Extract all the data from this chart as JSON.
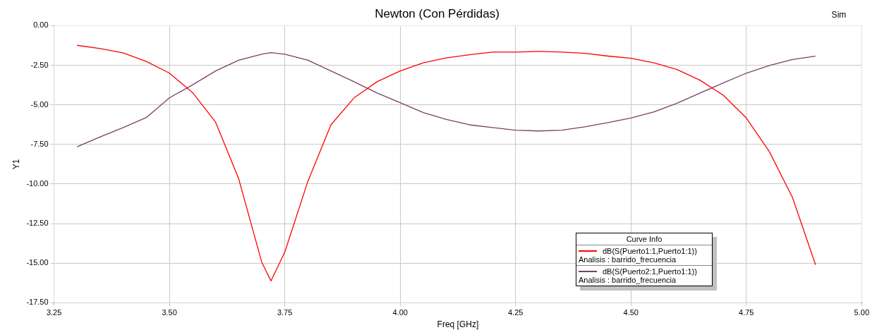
{
  "chart_data": {
    "type": "line",
    "title": "Newton (Con Pérdidas)",
    "xlabel": "Freq [GHz]",
    "ylabel": "Y1",
    "legend_title": "Curve Info",
    "annotations": [
      "Sim"
    ],
    "x": [
      3.3,
      3.35,
      3.4,
      3.45,
      3.5,
      3.55,
      3.6,
      3.65,
      3.7,
      3.72,
      3.75,
      3.8,
      3.85,
      3.9,
      3.95,
      4.0,
      4.05,
      4.1,
      4.15,
      4.2,
      4.25,
      4.3,
      4.35,
      4.4,
      4.45,
      4.5,
      4.55,
      4.6,
      4.65,
      4.7,
      4.75,
      4.8,
      4.85,
      4.9
    ],
    "series": [
      {
        "name": "dB(S(Puerto1:1,Puerto1:1))\nAnalisis : barrido_frecuencia",
        "color": "#ff0000",
        "values": [
          -1.24,
          -1.45,
          -1.72,
          -2.26,
          -3.0,
          -4.22,
          -6.09,
          -9.66,
          -14.93,
          -16.12,
          -14.3,
          -9.83,
          -6.26,
          -4.56,
          -3.54,
          -2.86,
          -2.35,
          -2.04,
          -1.84,
          -1.67,
          -1.67,
          -1.62,
          -1.67,
          -1.75,
          -1.92,
          -2.06,
          -2.35,
          -2.77,
          -3.45,
          -4.39,
          -5.83,
          -7.96,
          -10.85,
          -15.1
        ]
      },
      {
        "name": "dB(S(Puerto2:1,Puerto1:1))\nAnalisis : barrido_frecuencia",
        "color": "#7b3f66",
        "values": [
          -7.65,
          -7.02,
          -6.43,
          -5.8,
          -4.56,
          -3.74,
          -2.86,
          -2.18,
          -1.8,
          -1.7,
          -1.8,
          -2.18,
          -2.86,
          -3.54,
          -4.25,
          -4.86,
          -5.49,
          -5.92,
          -6.26,
          -6.43,
          -6.6,
          -6.65,
          -6.6,
          -6.39,
          -6.12,
          -5.83,
          -5.44,
          -4.9,
          -4.25,
          -3.62,
          -3.0,
          -2.52,
          -2.14,
          -1.92
        ]
      }
    ],
    "xlim": [
      3.25,
      5.0
    ],
    "xticks": [
      3.25,
      {
        "value": 3.5,
        "label": "3.50"
      },
      3.75,
      {
        "value": 4.0,
        "label": "4.00"
      },
      4.25,
      {
        "value": 4.5,
        "label": "4.50"
      },
      4.75,
      {
        "value": 5.0,
        "label": "5.00"
      }
    ],
    "ylim": [
      -17.5,
      0
    ],
    "yticks": [
      {
        "value": -17.5,
        "label": "-17.50"
      },
      {
        "value": -15,
        "label": "-15.00"
      },
      {
        "value": -12.5,
        "label": "-12.50"
      },
      {
        "value": -10,
        "label": "-10.00"
      },
      {
        "value": -7.5,
        "label": "-7.50"
      },
      {
        "value": -5,
        "label": "-5.00"
      },
      {
        "value": -2.5,
        "label": "-2.50"
      },
      {
        "value": 0,
        "label": "0.00"
      }
    ],
    "grid": true,
    "legend": "bottom right",
    "marker": "none",
    "line_style": "solid"
  }
}
